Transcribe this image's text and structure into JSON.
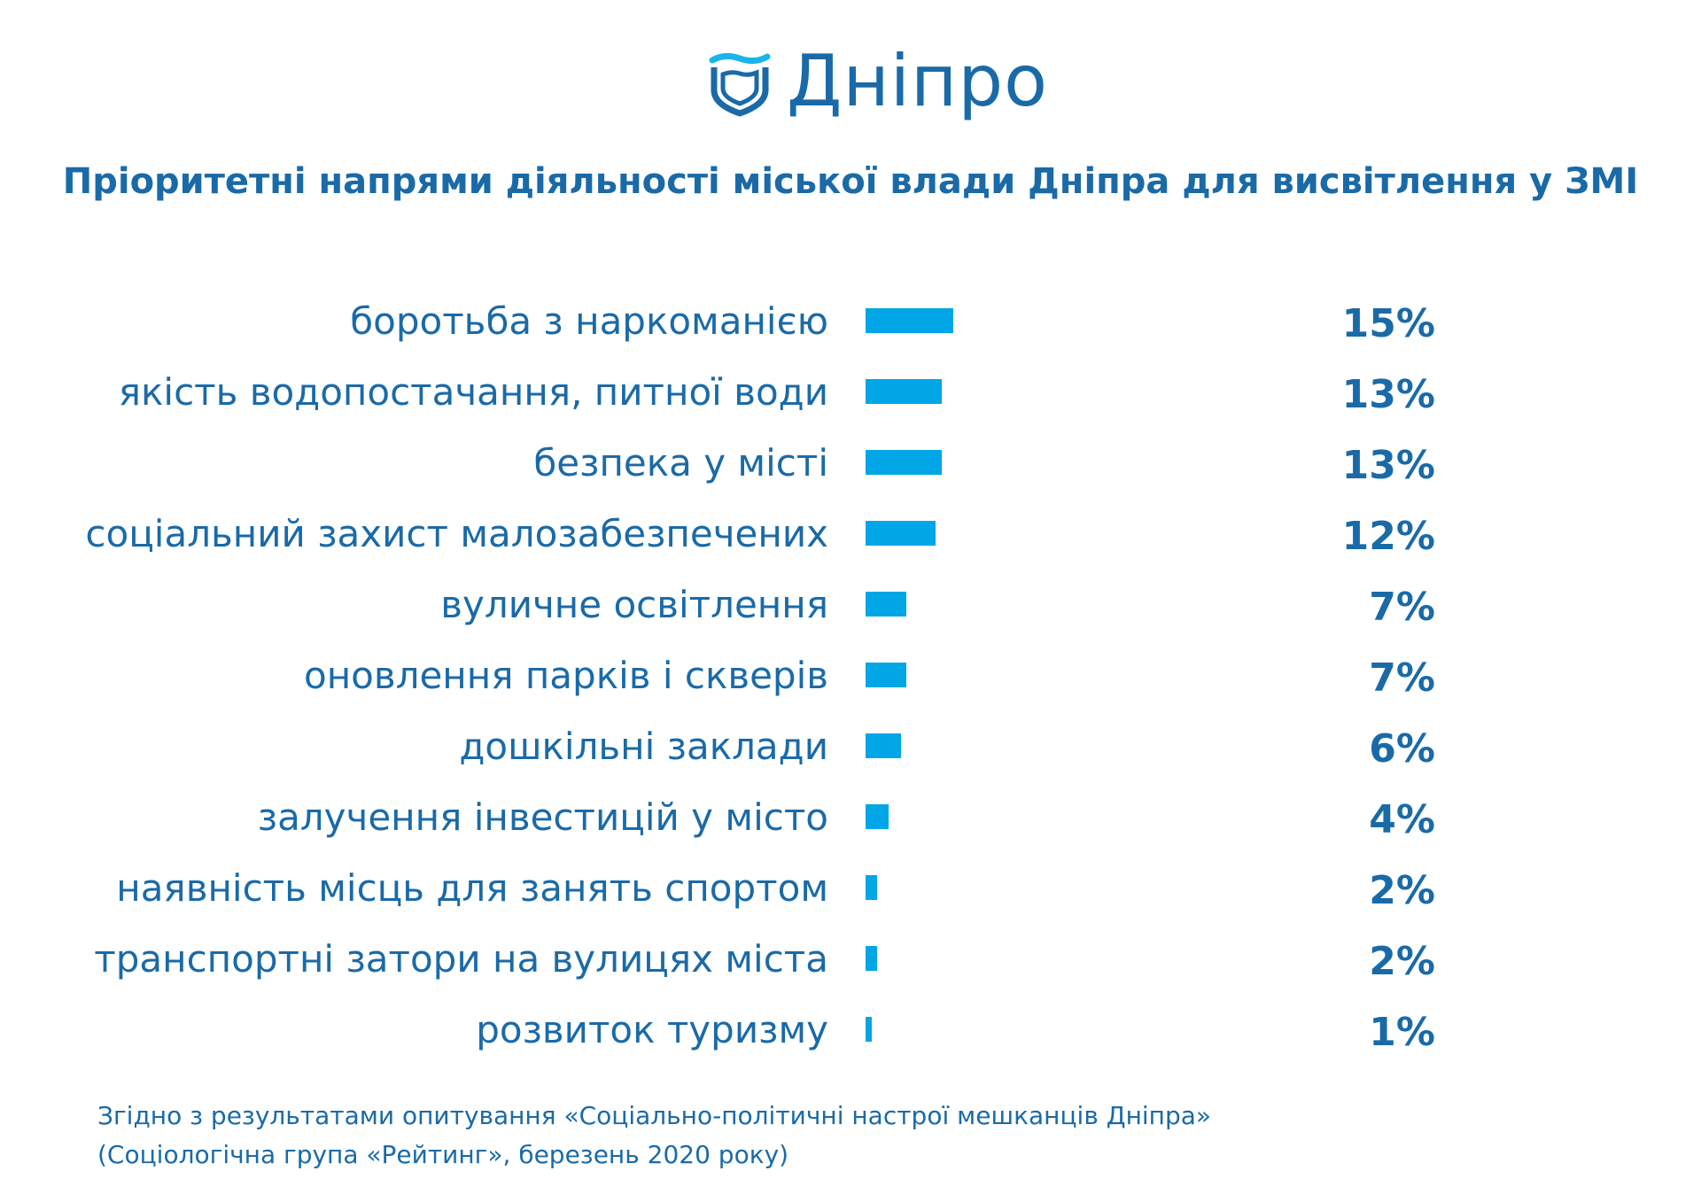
{
  "logo": {
    "text": "Дніпро",
    "icon": "shield-wave-icon"
  },
  "colors": {
    "text": "#1a6aa8",
    "bar": "#00a6e6"
  },
  "chart_data": {
    "type": "bar",
    "orientation": "horizontal",
    "title": "Пріоритетні напрями діяльності міської влади Дніпра для висвітлення у ЗМІ",
    "categories": [
      "боротьба з наркоманією",
      "якість водопостачання, питної води",
      "безпека у місті",
      "соціальний захист малозабезпечених",
      "вуличне освітлення",
      "оновлення парків і скверів",
      "дошкільні заклади",
      "залучення інвестицій у місто",
      "наявність місць для занять спортом",
      "транспортні затори на вулицях міста",
      "розвиток туризму"
    ],
    "values": [
      15,
      13,
      13,
      12,
      7,
      7,
      6,
      4,
      2,
      2,
      1
    ],
    "value_labels": [
      "15%",
      "13%",
      "13%",
      "12%",
      "7%",
      "7%",
      "6%",
      "4%",
      "2%",
      "2%",
      "1%"
    ],
    "grid": false
  },
  "footnote": {
    "line1": "Згідно з результатами опитування «Соціально-політичні настрої мешканців Дніпра»",
    "line2": "(Соціологічна група «Рейтинг», березень 2020 року)"
  }
}
